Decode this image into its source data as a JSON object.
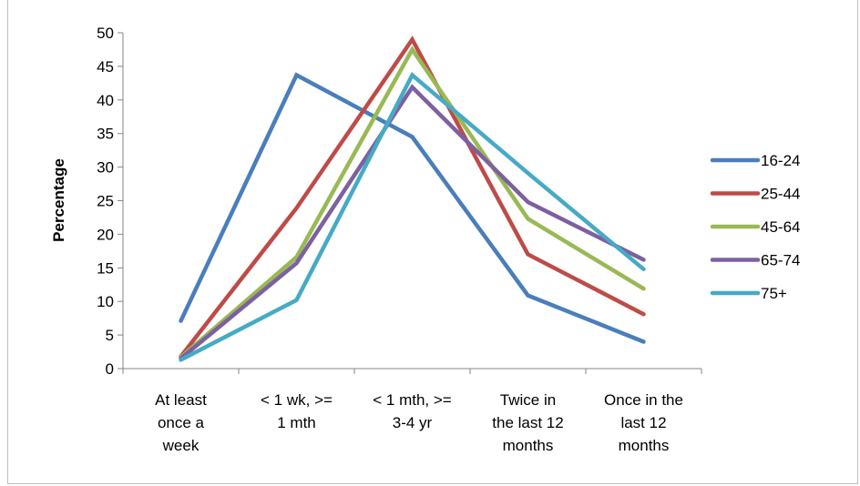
{
  "chart_data": {
    "type": "line",
    "title": "",
    "xlabel": "",
    "ylabel": "Percentage",
    "ylim": [
      0,
      50
    ],
    "yticks": [
      0,
      5,
      10,
      15,
      20,
      25,
      30,
      35,
      40,
      45,
      50
    ],
    "grid": false,
    "legend_position": "right",
    "categories": [
      [
        "At least",
        "once a",
        "week"
      ],
      [
        "< 1 wk, >=",
        "1 mth"
      ],
      [
        "< 1 mth, >=",
        "3-4 yr"
      ],
      [
        "Twice in",
        "the last 12",
        "months"
      ],
      [
        "Once in the",
        "last 12",
        "months"
      ]
    ],
    "series": [
      {
        "name": "16-24",
        "color": "#4a7ebb",
        "values": [
          7.1,
          43.7,
          34.5,
          10.9,
          4.0
        ]
      },
      {
        "name": "25-44",
        "color": "#be4b48",
        "values": [
          1.8,
          23.9,
          49.0,
          17.0,
          8.1
        ]
      },
      {
        "name": "45-64",
        "color": "#98b954",
        "values": [
          1.7,
          16.6,
          47.5,
          22.3,
          11.9
        ]
      },
      {
        "name": "65-74",
        "color": "#7d60a0",
        "values": [
          1.5,
          15.7,
          41.9,
          24.8,
          16.2
        ]
      },
      {
        "name": "75+",
        "color": "#46aac5",
        "values": [
          1.3,
          10.2,
          43.7,
          29.1,
          14.8
        ]
      }
    ]
  }
}
